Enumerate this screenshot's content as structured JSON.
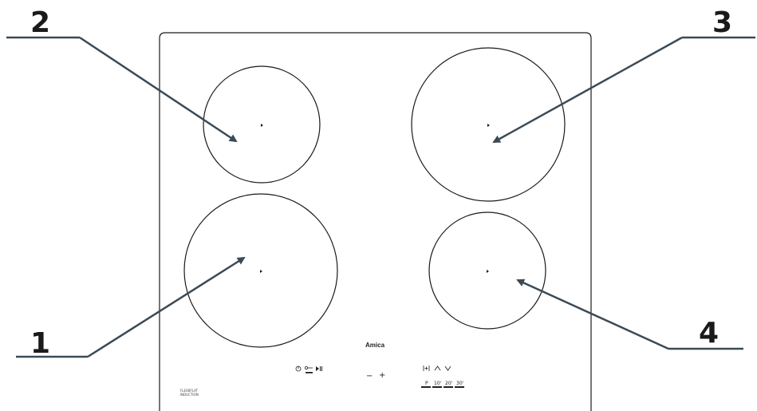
{
  "callouts": {
    "one": "1",
    "two": "2",
    "three": "3",
    "four": "4"
  },
  "hob": {
    "brand": "Amica",
    "left_logo_line1": "FLEXBFLAT",
    "left_logo_line2": "INDUCTION",
    "controls": {
      "minus": "−",
      "plus": "+",
      "timer_symbol": "|+|",
      "up": "^",
      "down": "v",
      "pause": "►||",
      "power": "ⓘ",
      "lock": "o-",
      "timer_presets": [
        "P",
        "10'",
        "20'",
        "30'"
      ]
    }
  },
  "colors": {
    "outline": "#1a1a1a",
    "arrow": "#3c4a55",
    "callout_line": "#3c4a55"
  },
  "icons": [
    "power-icon",
    "lock-icon",
    "pause-icon",
    "timer-icon",
    "up-icon",
    "down-icon"
  ]
}
